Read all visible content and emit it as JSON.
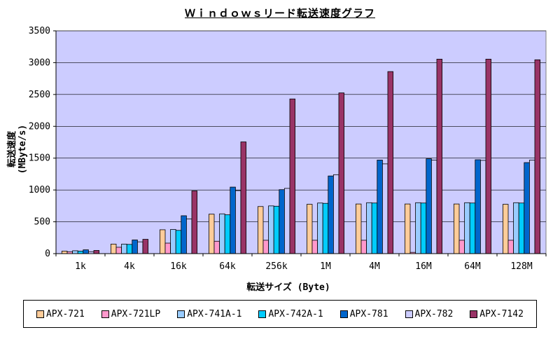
{
  "chart_data": {
    "type": "bar",
    "title": "Ｗｉｎｄｏｗｓリード転送速度グラフ",
    "xlabel": "転送サイズ (Byte)",
    "ylabel": "転送速度 (MByte/s)",
    "ylim": [
      0,
      3500
    ],
    "yticks": [
      0,
      500,
      1000,
      1500,
      2000,
      2500,
      3000,
      3500
    ],
    "grid": true,
    "legend_position": "bottom",
    "categories": [
      "1k",
      "4k",
      "16k",
      "64k",
      "256k",
      "1M",
      "4M",
      "16M",
      "64M",
      "128M"
    ],
    "series": [
      {
        "name": "APX-721",
        "color": "#FFCC99",
        "values": [
          40,
          150,
          375,
          620,
          740,
          775,
          780,
          780,
          780,
          775
        ]
      },
      {
        "name": "APX-721LP",
        "color": "#FF99CC",
        "values": [
          30,
          100,
          165,
          195,
          210,
          210,
          210,
          20,
          210,
          210
        ]
      },
      {
        "name": "APX-741A-1",
        "color": "#99CCFF",
        "values": [
          45,
          150,
          380,
          625,
          750,
          795,
          800,
          800,
          800,
          800
        ]
      },
      {
        "name": "APX-742A-1",
        "color": "#00CCFF",
        "values": [
          40,
          145,
          365,
          610,
          745,
          790,
          795,
          795,
          795,
          795
        ]
      },
      {
        "name": "APX-781",
        "color": "#0066CC",
        "values": [
          60,
          215,
          595,
          1045,
          1005,
          1220,
          1470,
          1490,
          1475,
          1430
        ]
      },
      {
        "name": "APX-782",
        "color": "#CCCCFF",
        "values": [
          30,
          185,
          545,
          990,
          1025,
          1240,
          1410,
          1470,
          1465,
          1470
        ]
      },
      {
        "name": "APX-7142",
        "color": "#993366",
        "values": [
          50,
          225,
          985,
          1755,
          2430,
          2525,
          2860,
          3055,
          3055,
          3045
        ]
      }
    ]
  },
  "colors": {
    "plot_background": "#CCCCFF",
    "gridline": "#000000"
  }
}
